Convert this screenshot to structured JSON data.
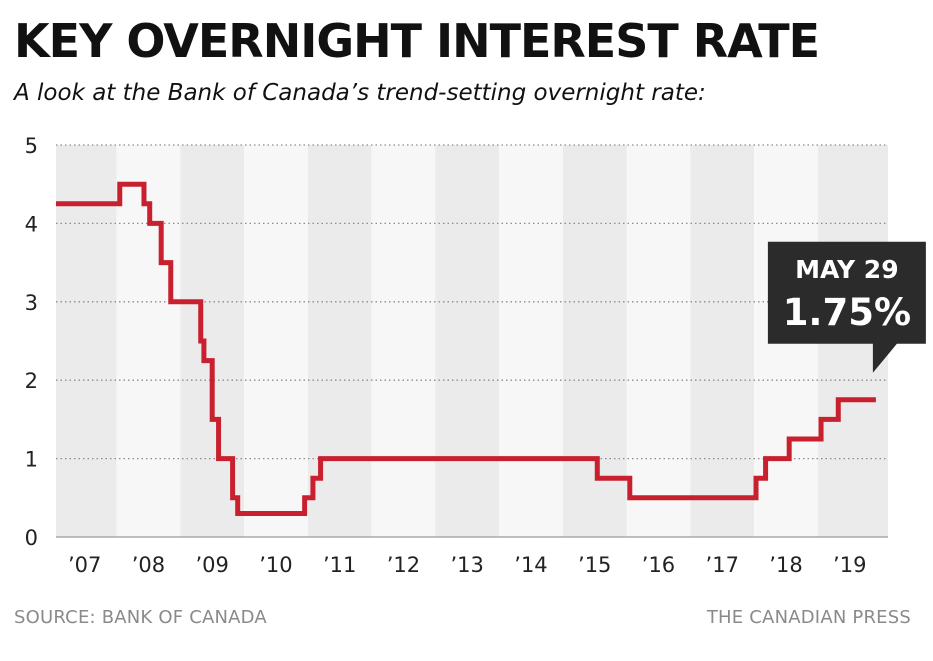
{
  "title": "KEY OVERNIGHT INTEREST RATE",
  "subtitle": "A look at the Bank of Canada’s trend-setting overnight rate:",
  "source": "SOURCE: BANK OF CANADA",
  "credit": "THE CANADIAN PRESS",
  "colors": {
    "line": "#c8202f",
    "band_dark": "#ebebeb",
    "band_light": "#f7f7f7",
    "callout": "#2b2b2b"
  },
  "chart_data": {
    "type": "line",
    "step": true,
    "xlabel": "",
    "ylabel": "",
    "xlim": [
      2007,
      2019.6
    ],
    "ylim": [
      0,
      5
    ],
    "y_ticks": [
      0,
      1,
      2,
      3,
      4,
      5
    ],
    "x_ticks": [
      {
        "label": "’07",
        "x": 2007
      },
      {
        "label": "’08",
        "x": 2008
      },
      {
        "label": "’09",
        "x": 2009
      },
      {
        "label": "’10",
        "x": 2010
      },
      {
        "label": "’11",
        "x": 2011
      },
      {
        "label": "’12",
        "x": 2012
      },
      {
        "label": "’13",
        "x": 2013
      },
      {
        "label": "’14",
        "x": 2014
      },
      {
        "label": "’15",
        "x": 2015
      },
      {
        "label": "’16",
        "x": 2016
      },
      {
        "label": "’17",
        "x": 2017
      },
      {
        "label": "’18",
        "x": 2018
      },
      {
        "label": "’19",
        "x": 2019
      }
    ],
    "grid": true,
    "series": [
      {
        "points": [
          [
            2006.55,
            4.25
          ],
          [
            2007.55,
            4.5
          ],
          [
            2007.93,
            4.25
          ],
          [
            2008.02,
            4.0
          ],
          [
            2008.2,
            3.5
          ],
          [
            2008.35,
            3.0
          ],
          [
            2008.82,
            2.5
          ],
          [
            2008.87,
            2.25
          ],
          [
            2009.0,
            1.5
          ],
          [
            2009.1,
            1.0
          ],
          [
            2009.32,
            0.5
          ],
          [
            2009.4,
            0.3
          ],
          [
            2010.45,
            0.5
          ],
          [
            2010.58,
            0.75
          ],
          [
            2010.7,
            1.0
          ],
          [
            2015.04,
            0.75
          ],
          [
            2015.55,
            0.5
          ],
          [
            2017.53,
            0.75
          ],
          [
            2017.68,
            1.0
          ],
          [
            2018.05,
            1.25
          ],
          [
            2018.55,
            1.5
          ],
          [
            2018.82,
            1.75
          ],
          [
            2019.41,
            1.75
          ]
        ]
      }
    ],
    "annotation": {
      "date": "MAY 29",
      "value": "1.75%"
    }
  }
}
